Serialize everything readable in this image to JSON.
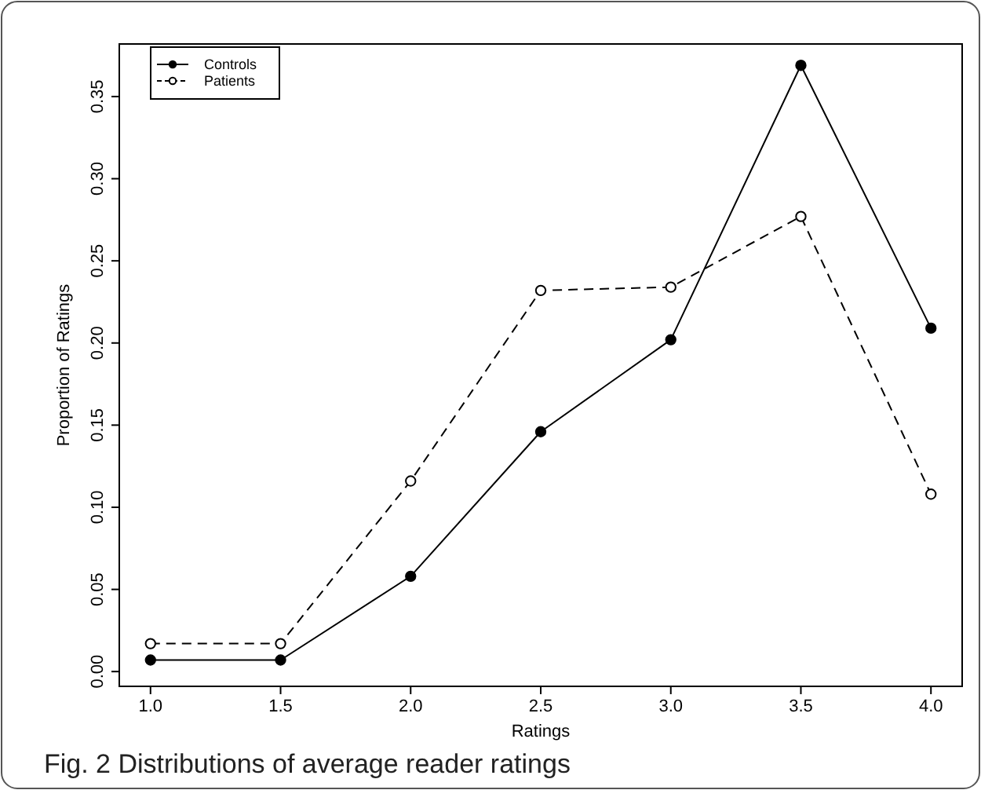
{
  "chart_data": {
    "type": "line",
    "title": "Fig. 2  Distributions of average reader ratings",
    "xlabel": "Ratings",
    "ylabel": "Proportion of Ratings",
    "x": [
      1.0,
      1.5,
      2.0,
      2.5,
      3.0,
      3.5,
      4.0
    ],
    "series": [
      {
        "name": "Controls",
        "color": "#000000",
        "line_style": "solid",
        "values": [
          0.007,
          0.007,
          0.058,
          0.146,
          0.202,
          0.369,
          0.209
        ]
      },
      {
        "name": "Patients",
        "color": "#000000",
        "line_style": "dashed",
        "values": [
          0.017,
          0.017,
          0.116,
          0.232,
          0.234,
          0.277,
          0.108
        ]
      }
    ],
    "xlim": [
      0.88,
      4.12
    ],
    "xticks": [
      {
        "value": 1.0,
        "label": "1.0"
      },
      {
        "value": 1.5,
        "label": "1.5"
      },
      {
        "value": 2.0,
        "label": "2.0"
      },
      {
        "value": 2.5,
        "label": "2.5"
      },
      {
        "value": 3.0,
        "label": "3.0"
      },
      {
        "value": 3.5,
        "label": "3.5"
      },
      {
        "value": 4.0,
        "label": "4.0"
      }
    ],
    "ylim": [
      -0.009,
      0.382
    ],
    "yticks": [
      {
        "value": 0,
        "label": "0.00"
      },
      {
        "value": 0.05,
        "label": "0.05"
      },
      {
        "value": 0.1,
        "label": "0.10"
      },
      {
        "value": 0.15,
        "label": "0.15"
      },
      {
        "value": 0.2,
        "label": "0.20"
      },
      {
        "value": 0.25,
        "label": "0.25"
      },
      {
        "value": 0.3,
        "label": "0.30"
      },
      {
        "value": 0.35,
        "label": "0.35"
      }
    ],
    "grid": false,
    "legend": "top left",
    "marker": "circle"
  }
}
